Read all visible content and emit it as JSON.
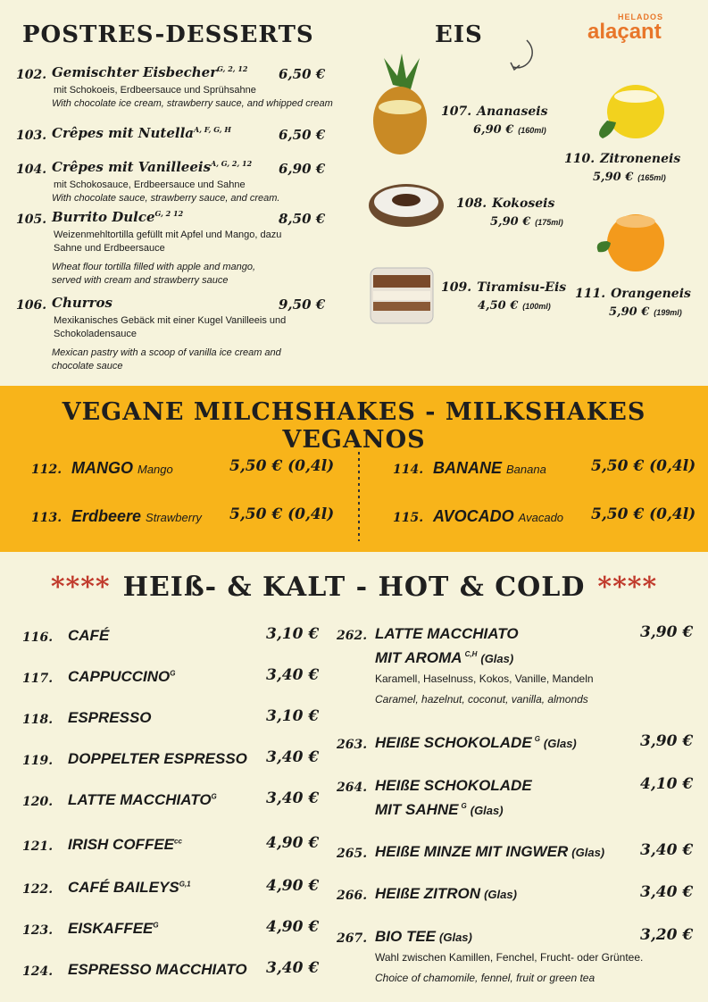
{
  "desserts": {
    "title": "POSTRES-DESSERTS",
    "items": [
      {
        "num": "102.",
        "name": "Gemischter Eisbecher",
        "allergens": "G, 2, 12",
        "price": "6,50 €",
        "desc_de": "mit Schokoeis, Erdbeersauce und Sprühsahne",
        "desc_en": "With chocolate ice cream, strawberry sauce, and whipped cream"
      },
      {
        "num": "103.",
        "name": "Crêpes mit Nutella",
        "allergens": "A, F, G, H",
        "price": "6,50 €"
      },
      {
        "num": "104.",
        "name": "Crêpes mit Vanilleeis",
        "allergens": "A, G, 2, 12",
        "price": "6,90 €",
        "desc_de": "mit Schokosauce, Erdbeersauce und Sahne",
        "desc_en": "With chocolate sauce, strawberry sauce, and cream."
      },
      {
        "num": "105.",
        "name": "Burrito Dulce",
        "allergens": "G, 2 12",
        "price": "8,50 €",
        "desc_de": "Weizenmehltortilla gefüllt mit Apfel und Mango, dazu Sahne und Erdbeersauce",
        "desc_en": "Wheat flour tortilla filled with apple and mango, served with cream and strawberry sauce"
      },
      {
        "num": "106.",
        "name": "Churros",
        "price": "9,50 €",
        "desc_de": "Mexikanisches Gebäck mit einer Kugel Vanilleeis und Schokoladensauce",
        "desc_en": "Mexican pastry with a scoop of vanilla ice cream and chocolate sauce"
      }
    ]
  },
  "eis": {
    "title": "EIS",
    "logo": {
      "small": "HELADOS",
      "brand": "alaçant"
    },
    "items": [
      {
        "num": "107.",
        "name": "Ananaseis",
        "price": "6,90 €",
        "size": "(160ml)"
      },
      {
        "num": "108.",
        "name": "Kokoseis",
        "price": "5,90 €",
        "size": "(175ml)"
      },
      {
        "num": "109.",
        "name": "Tiramisu-Eis",
        "price": "4,50 €",
        "size": "(100ml)"
      },
      {
        "num": "110.",
        "name": "Zitroneneis",
        "price": "5,90 €",
        "size": "(165ml)"
      },
      {
        "num": "111.",
        "name": "Orangeneis",
        "price": "5,90 €",
        "size": "(199ml)"
      }
    ]
  },
  "shakes": {
    "title": "VEGANE MILCHSHAKES - MILKSHAKES VEGANOS",
    "items": [
      {
        "num": "112.",
        "name": "MANGO",
        "alt": "Mango",
        "price": "5,50 € (0,4l)"
      },
      {
        "num": "113.",
        "name": "Erdbeere",
        "alt": "Strawberry",
        "price": "5,50 € (0,4l)"
      },
      {
        "num": "114.",
        "name": "BANANE",
        "alt": "Banana",
        "price": "5,50 € (0,4l)"
      },
      {
        "num": "115.",
        "name": "AVOCADO",
        "alt": "Avacado",
        "price": "5,50 € (0,4l)"
      }
    ]
  },
  "hot": {
    "stars": "****",
    "title": "HEIß- & KALT - HOT & COLD",
    "left": [
      {
        "num": "116.",
        "name": "CAFÉ",
        "price": "3,10 €"
      },
      {
        "num": "117.",
        "name": "CAPPUCCINO",
        "allergens": "G",
        "price": "3,40 €"
      },
      {
        "num": "118.",
        "name": "ESPRESSO",
        "price": "3,10 €"
      },
      {
        "num": "119.",
        "name": "DOPPELTER ESPRESSO",
        "price": "3,40 €"
      },
      {
        "num": "120.",
        "name": "LATTE MACCHIATO",
        "allergens": "G",
        "price": "3,40 €"
      },
      {
        "num": "121.",
        "name": "IRISH COFFEE",
        "allergens": "cc",
        "price": "4,90 €"
      },
      {
        "num": "122.",
        "name": "CAFÉ BAILEYS",
        "allergens": "G,1",
        "price": "4,90 €"
      },
      {
        "num": "123.",
        "name": "EISKAFFEE",
        "allergens": "G",
        "price": "4,90 €"
      },
      {
        "num": "124.",
        "name": "ESPRESSO MACCHIATO",
        "price": "3,40 €"
      }
    ],
    "right": [
      {
        "num": "262.",
        "name": "LATTE MACCHIATO",
        "name2": "MIT AROMA",
        "allergens": "C,H",
        "glas": "(Glas)",
        "price": "3,90 €",
        "desc_de": "Karamell, Haselnuss, Kokos, Vanille, Mandeln",
        "desc_en": "Caramel, hazelnut, coconut, vanilla, almonds"
      },
      {
        "num": "263.",
        "name": "HEIßE SCHOKOLADE",
        "allergens": "G",
        "glas": "(Glas)",
        "price": "3,90 €"
      },
      {
        "num": "264.",
        "name": "HEIßE SCHOKOLADE",
        "name2": "MIT SAHNE",
        "allergens": "G",
        "glas": "(Glas)",
        "price": "4,10 €"
      },
      {
        "num": "265.",
        "name": "HEIßE MINZE MIT INGWER",
        "glas": "(Glas)",
        "price": "3,40 €"
      },
      {
        "num": "266.",
        "name": "HEIßE ZITRON",
        "glas": "(Glas)",
        "price": "3,40 €"
      },
      {
        "num": "267.",
        "name": "BIO TEE",
        "glas": "(Glas)",
        "price": "3,20 €",
        "desc_de": "Wahl zwischen Kamillen, Fenchel, Frucht- oder Grüntee.",
        "desc_en": "Choice of chamomile, fennel, fruit or green tea"
      }
    ]
  }
}
